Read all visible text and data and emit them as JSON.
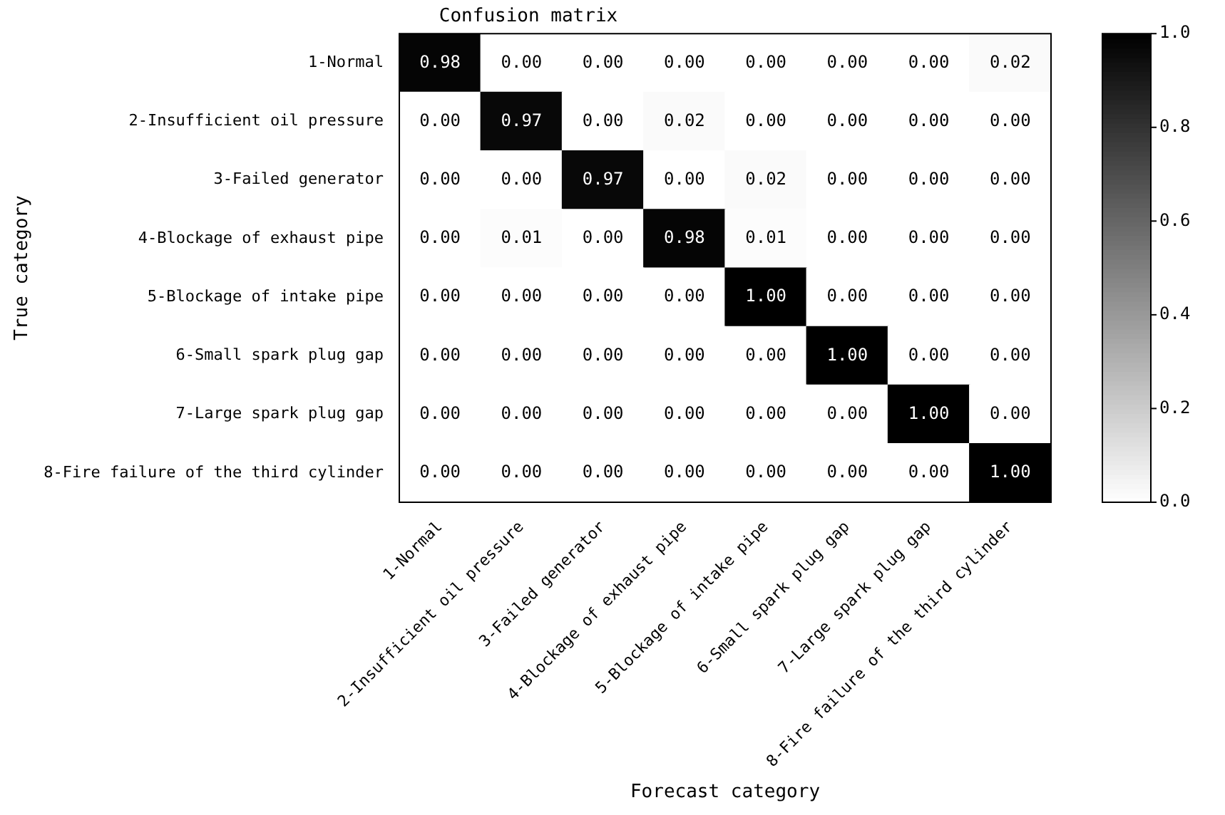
{
  "chart_data": {
    "type": "heatmap",
    "title": "Confusion matrix",
    "xlabel": "Forecast category",
    "ylabel": "True category",
    "categories": [
      "1-Normal",
      "2-Insufficient oil pressure",
      "3-Failed generator",
      "4-Blockage of exhaust pipe",
      "5-Blockage of intake pipe",
      "6-Small spark plug gap",
      "7-Large spark plug gap",
      "8-Fire failure of the third cylinder"
    ],
    "y_categories": [
      "1-Normal",
      "2-Insufficient oil pressure",
      "3-Failed generator",
      "4-Blockage of exhaust pipe",
      "5-Blockage of intake pipe",
      "6-Small spark plug gap",
      "7-Large spark plug gap",
      "8-Fire failure of the third cylinder"
    ],
    "cells": [
      [
        0.98,
        0,
        0,
        0,
        0,
        0,
        0,
        0.02
      ],
      [
        0,
        0.97,
        0,
        0.02,
        0,
        0,
        0,
        0
      ],
      [
        0,
        0,
        0.97,
        0,
        0.02,
        0,
        0,
        0
      ],
      [
        0,
        0.01,
        0,
        0.98,
        0.01,
        0,
        0,
        0
      ],
      [
        0,
        0,
        0,
        0,
        1,
        0,
        0,
        0
      ],
      [
        0,
        0,
        0,
        0,
        0,
        1,
        0,
        0
      ],
      [
        0,
        0,
        0,
        0,
        0,
        0,
        1,
        0
      ],
      [
        0,
        0,
        0,
        0,
        0,
        0,
        0,
        1
      ]
    ],
    "cell_labels": [
      [
        "0.98",
        "0.00",
        "0.00",
        "0.00",
        "0.00",
        "0.00",
        "0.00",
        "0.02"
      ],
      [
        "0.00",
        "0.97",
        "0.00",
        "0.02",
        "0.00",
        "0.00",
        "0.00",
        "0.00"
      ],
      [
        "0.00",
        "0.00",
        "0.97",
        "0.00",
        "0.02",
        "0.00",
        "0.00",
        "0.00"
      ],
      [
        "0.00",
        "0.01",
        "0.00",
        "0.98",
        "0.01",
        "0.00",
        "0.00",
        "0.00"
      ],
      [
        "0.00",
        "0.00",
        "0.00",
        "0.00",
        "1.00",
        "0.00",
        "0.00",
        "0.00"
      ],
      [
        "0.00",
        "0.00",
        "0.00",
        "0.00",
        "0.00",
        "1.00",
        "0.00",
        "0.00"
      ],
      [
        "0.00",
        "0.00",
        "0.00",
        "0.00",
        "0.00",
        "0.00",
        "1.00",
        "0.00"
      ],
      [
        "0.00",
        "0.00",
        "0.00",
        "0.00",
        "0.00",
        "0.00",
        "0.00",
        "1.00"
      ]
    ],
    "clim": [
      0,
      1
    ],
    "cticks": [
      {
        "value": 0,
        "label": "0.0"
      },
      {
        "value": 0.2,
        "label": "0.2"
      },
      {
        "value": 0.4,
        "label": "0.4"
      },
      {
        "value": 0.6,
        "label": "0.6"
      },
      {
        "value": 0.8,
        "label": "0.8"
      },
      {
        "value": 1,
        "label": "1.0"
      }
    ]
  }
}
